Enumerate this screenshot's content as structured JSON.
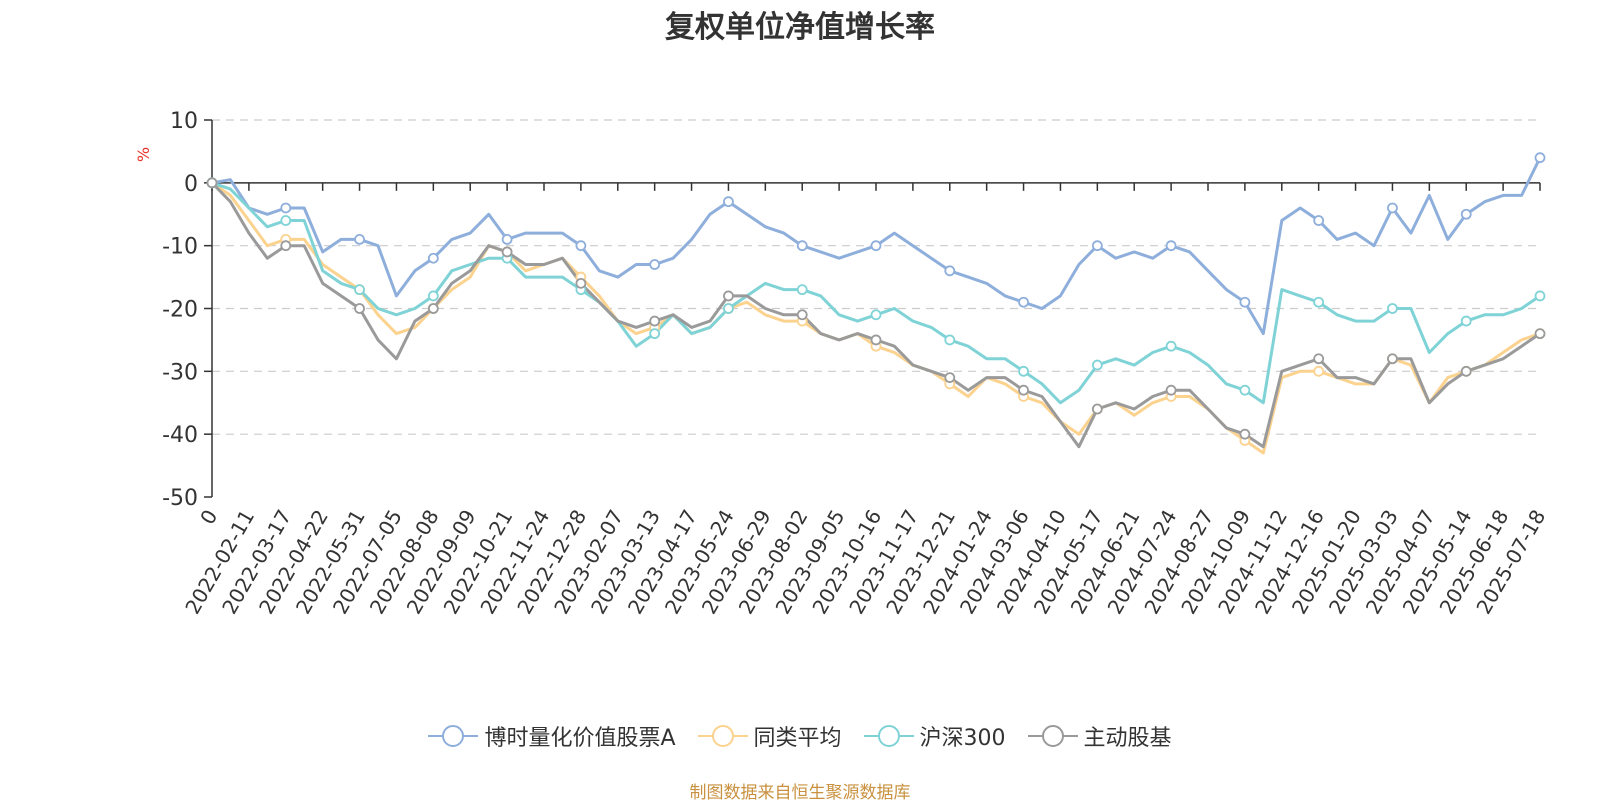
{
  "chart_data": {
    "type": "line",
    "title": "复权单位净值增长率",
    "ylabel": "%",
    "ylim": [
      -50,
      10
    ],
    "yticks": [
      10,
      0,
      -10,
      -20,
      -30,
      -40,
      -50
    ],
    "x_tick_labels": [
      "0",
      "2022-02-11",
      "2022-03-17",
      "2022-04-22",
      "2022-05-31",
      "2022-07-05",
      "2022-08-08",
      "2022-09-09",
      "2022-10-21",
      "2022-11-24",
      "2022-12-28",
      "2023-02-07",
      "2023-03-13",
      "2023-04-17",
      "2023-05-24",
      "2023-06-29",
      "2023-08-02",
      "2023-09-05",
      "2023-10-16",
      "2023-11-17",
      "2023-12-21",
      "2024-01-24",
      "2024-03-06",
      "2024-04-10",
      "2024-05-17",
      "2024-06-21",
      "2024-07-24",
      "2024-08-27",
      "2024-10-09",
      "2024-11-12",
      "2024-12-16",
      "2025-01-20",
      "2025-03-03",
      "2025-04-07",
      "2025-05-14",
      "2025-06-18",
      "2025-07-18"
    ],
    "grid": true,
    "legend_position": "bottom",
    "series": [
      {
        "name": "博时量化价值股票A",
        "color": "#8eaedb",
        "values": [
          0,
          0.5,
          -4,
          -5,
          -4,
          -4,
          -11,
          -9,
          -9,
          -10,
          -18,
          -14,
          -12,
          -9,
          -8,
          -5,
          -9,
          -8,
          -8,
          -8,
          -10,
          -14,
          -15,
          -13,
          -13,
          -12,
          -9,
          -5,
          -3,
          -5,
          -7,
          -8,
          -10,
          -11,
          -12,
          -11,
          -10,
          -8,
          -10,
          -12,
          -14,
          -15,
          -16,
          -18,
          -19,
          -20,
          -18,
          -13,
          -10,
          -12,
          -11,
          -12,
          -10,
          -11,
          -14,
          -17,
          -19,
          -24,
          -6,
          -4,
          -6,
          -9,
          -8,
          -10,
          -4,
          -8,
          -2,
          -9,
          -5,
          -3,
          -2,
          -2,
          4
        ]
      },
      {
        "name": "同类平均",
        "color": "#fcd28f",
        "values": [
          0,
          -2,
          -6,
          -10,
          -9,
          -9,
          -13,
          -15,
          -17,
          -21,
          -24,
          -23,
          -20,
          -17,
          -15,
          -10,
          -11,
          -14,
          -13,
          -12,
          -15,
          -18,
          -22,
          -24,
          -23,
          -21,
          -24,
          -23,
          -20,
          -19,
          -21,
          -22,
          -22,
          -24,
          -25,
          -24,
          -26,
          -27,
          -29,
          -30,
          -32,
          -34,
          -31,
          -32,
          -34,
          -35,
          -38,
          -40,
          -36,
          -35,
          -37,
          -35,
          -34,
          -34,
          -36,
          -39,
          -41,
          -43,
          -31,
          -30,
          -30,
          -31,
          -32,
          -32,
          -28,
          -29,
          -35,
          -31,
          -30,
          -29,
          -27,
          -25,
          -24
        ]
      },
      {
        "name": "沪深300",
        "color": "#7fd3d6",
        "values": [
          0,
          -1,
          -4,
          -7,
          -6,
          -6,
          -14,
          -16,
          -17,
          -20,
          -21,
          -20,
          -18,
          -14,
          -13,
          -12,
          -12,
          -15,
          -15,
          -15,
          -17,
          -19,
          -22,
          -26,
          -24,
          -21,
          -24,
          -23,
          -20,
          -18,
          -16,
          -17,
          -17,
          -18,
          -21,
          -22,
          -21,
          -20,
          -22,
          -23,
          -25,
          -26,
          -28,
          -28,
          -30,
          -32,
          -35,
          -33,
          -29,
          -28,
          -29,
          -27,
          -26,
          -27,
          -29,
          -32,
          -33,
          -35,
          -17,
          -18,
          -19,
          -21,
          -22,
          -22,
          -20,
          -20,
          -27,
          -24,
          -22,
          -21,
          -21,
          -20,
          -18
        ]
      },
      {
        "name": "主动股基",
        "color": "#9a9a9a",
        "values": [
          0,
          -3,
          -8,
          -12,
          -10,
          -10,
          -16,
          -18,
          -20,
          -25,
          -28,
          -22,
          -20,
          -16,
          -14,
          -10,
          -11,
          -13,
          -13,
          -12,
          -16,
          -19,
          -22,
          -23,
          -22,
          -21,
          -23,
          -22,
          -18,
          -18,
          -20,
          -21,
          -21,
          -24,
          -25,
          -24,
          -25,
          -26,
          -29,
          -30,
          -31,
          -33,
          -31,
          -31,
          -33,
          -34,
          -38,
          -42,
          -36,
          -35,
          -36,
          -34,
          -33,
          -33,
          -36,
          -39,
          -40,
          -42,
          -30,
          -29,
          -28,
          -31,
          -31,
          -32,
          -28,
          -28,
          -35,
          -32,
          -30,
          -29,
          -28,
          -26,
          -24
        ]
      }
    ]
  },
  "source": "制图数据来自恒生聚源数据库"
}
